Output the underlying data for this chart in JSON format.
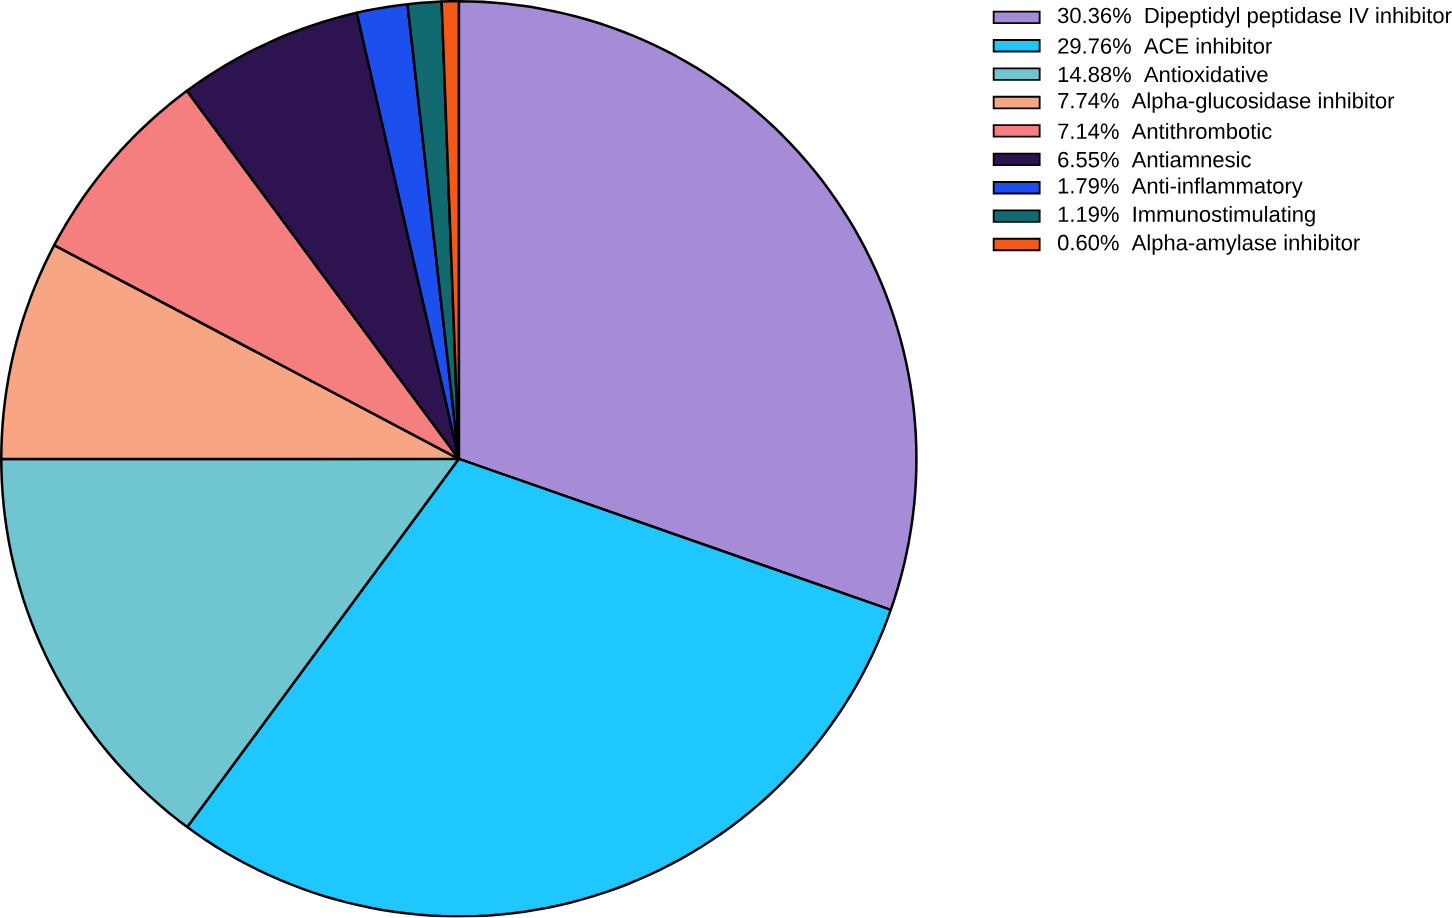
{
  "chart_data": {
    "type": "pie",
    "categories": [
      "30.36%  Dipeptidyl peptidase IV inhibitor",
      "29.76%  ACE inhibitor",
      "14.88%  Antioxidative",
      "7.74%  Alpha-glucosidase inhibitor",
      "7.14%  Antithrombotic",
      "6.55%  Antiamnesic",
      "1.79%  Anti-inflammatory",
      "1.19%  Immunostimulating",
      "0.60%  Alpha-amylase inhibitor"
    ],
    "values": [
      30.36,
      29.76,
      14.88,
      7.74,
      7.14,
      6.55,
      1.79,
      1.19,
      0.6
    ],
    "colors": [
      "#a68cd6",
      "#1ec8ff",
      "#70c6d0",
      "#f7a582",
      "#f57f7f",
      "#2d1450",
      "#1d4fef",
      "#106a70",
      "#f25a1a"
    ],
    "legend": "top right"
  }
}
